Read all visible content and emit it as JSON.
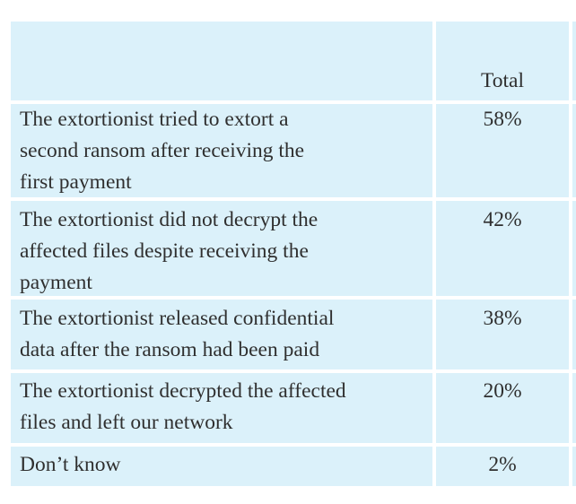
{
  "chart_data": {
    "type": "table",
    "columns": [
      "",
      "Total"
    ],
    "rows": [
      {
        "label": "The extortionist tried to extort a\nsecond ransom after receiving the\nfirst payment",
        "value": "58%"
      },
      {
        "label": "The extortionist did not decrypt the\naffected files despite receiving the\npayment",
        "value": "42%"
      },
      {
        "label": "The extortionist released confidential\ndata after the ransom had been paid",
        "value": "38%"
      },
      {
        "label": "The extortionist decrypted the affected\nfiles and left our network",
        "value": "20%"
      },
      {
        "label": "Don’t know",
        "value": "2%"
      }
    ]
  },
  "colors": {
    "cell_bg": "#dbf1fa",
    "text": "#2f2f2f",
    "divider": "#ffffff"
  }
}
